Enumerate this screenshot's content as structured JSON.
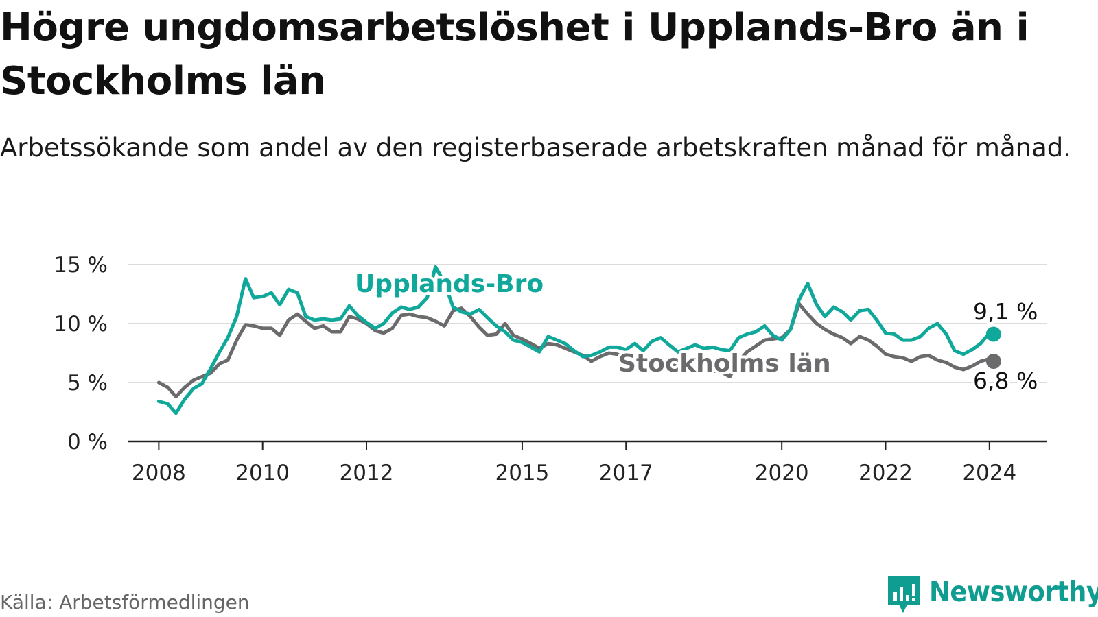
{
  "header": {
    "title": "Högre ungdomsarbetslöshet i Upplands-Bro än i Stockholms län",
    "subtitle": "Arbetssökande som andel av den registerbaserade arbetskraften månad för månad."
  },
  "footer": {
    "source": "Källa: Arbetsförmedlingen",
    "brand": "Newsworthy"
  },
  "colors": {
    "upplands": "#0fa89a",
    "stockholm": "#6b6b6e",
    "grid": "#dcdcdc",
    "axis": "#222222",
    "text": "#111111"
  },
  "chart_data": {
    "type": "line",
    "title": "Högre ungdomsarbetslöshet i Upplands-Bro än i Stockholms län",
    "xlabel": "",
    "ylabel": "",
    "ylim": [
      0,
      15
    ],
    "xlim": [
      2007.4,
      2025.1
    ],
    "yticks": [
      0,
      5,
      10,
      15
    ],
    "ytick_labels": [
      "0 %",
      "5 %",
      "10 %",
      "15 %"
    ],
    "xticks": [
      2008,
      2010,
      2012,
      2015,
      2017,
      2020,
      2022,
      2024
    ],
    "xtick_labels": [
      "2008",
      "2010",
      "2012",
      "2015",
      "2017",
      "2020",
      "2022",
      "2024"
    ],
    "grid": true,
    "series": [
      {
        "name": "Upplands-Bro",
        "label": "Upplands-Bro",
        "end_label": "9,1 %",
        "x": [
          2008.0,
          2008.17,
          2008.33,
          2008.5,
          2008.67,
          2008.83,
          2009.0,
          2009.17,
          2009.33,
          2009.5,
          2009.67,
          2009.83,
          2010.0,
          2010.17,
          2010.33,
          2010.5,
          2010.67,
          2010.83,
          2011.0,
          2011.17,
          2011.33,
          2011.5,
          2011.67,
          2011.83,
          2012.0,
          2012.17,
          2012.33,
          2012.5,
          2012.67,
          2012.83,
          2013.0,
          2013.17,
          2013.33,
          2013.5,
          2013.67,
          2013.83,
          2014.0,
          2014.17,
          2014.33,
          2014.5,
          2014.67,
          2014.83,
          2015.0,
          2015.17,
          2015.33,
          2015.5,
          2015.67,
          2015.83,
          2016.0,
          2016.17,
          2016.33,
          2016.5,
          2016.67,
          2016.83,
          2017.0,
          2017.17,
          2017.33,
          2017.5,
          2017.67,
          2017.83,
          2018.0,
          2018.17,
          2018.33,
          2018.5,
          2018.67,
          2018.83,
          2019.0,
          2019.17,
          2019.33,
          2019.5,
          2019.67,
          2019.83,
          2020.0,
          2020.17,
          2020.33,
          2020.5,
          2020.67,
          2020.83,
          2021.0,
          2021.17,
          2021.33,
          2021.5,
          2021.67,
          2021.83,
          2022.0,
          2022.17,
          2022.33,
          2022.5,
          2022.67,
          2022.83,
          2023.0,
          2023.17,
          2023.33,
          2023.5,
          2023.67,
          2023.83,
          2024.0,
          2024.08
        ],
        "values": [
          3.4,
          3.2,
          2.4,
          3.6,
          4.5,
          4.9,
          6.2,
          7.6,
          8.8,
          10.6,
          13.8,
          12.2,
          12.3,
          12.6,
          11.6,
          12.9,
          12.6,
          10.6,
          10.3,
          10.4,
          10.3,
          10.4,
          11.5,
          10.7,
          10.1,
          9.6,
          10.0,
          10.9,
          11.4,
          11.2,
          11.4,
          12.2,
          14.8,
          13.5,
          11.4,
          11.0,
          10.8,
          11.2,
          10.5,
          9.8,
          9.3,
          8.6,
          8.4,
          8.0,
          7.6,
          8.9,
          8.6,
          8.3,
          7.7,
          7.2,
          7.3,
          7.6,
          8.0,
          8.0,
          7.8,
          8.3,
          7.7,
          8.5,
          8.8,
          8.2,
          7.6,
          7.9,
          8.2,
          7.9,
          8.0,
          7.8,
          7.7,
          8.8,
          9.1,
          9.3,
          9.8,
          9.0,
          8.6,
          9.5,
          12.0,
          13.4,
          11.6,
          10.6,
          11.4,
          11.0,
          10.3,
          11.1,
          11.2,
          10.3,
          9.2,
          9.1,
          8.6,
          8.6,
          8.9,
          9.6,
          10.0,
          9.1,
          7.7,
          7.4,
          7.8,
          8.3,
          9.2,
          9.1
        ]
      },
      {
        "name": "Stockholms län",
        "label": "Stockholms län",
        "end_label": "6,8 %",
        "x": [
          2008.0,
          2008.17,
          2008.33,
          2008.5,
          2008.67,
          2008.83,
          2009.0,
          2009.17,
          2009.33,
          2009.5,
          2009.67,
          2009.83,
          2010.0,
          2010.17,
          2010.33,
          2010.5,
          2010.67,
          2010.83,
          2011.0,
          2011.17,
          2011.33,
          2011.5,
          2011.67,
          2011.83,
          2012.0,
          2012.17,
          2012.33,
          2012.5,
          2012.67,
          2012.83,
          2013.0,
          2013.17,
          2013.33,
          2013.5,
          2013.67,
          2013.83,
          2014.0,
          2014.17,
          2014.33,
          2014.5,
          2014.67,
          2014.83,
          2015.0,
          2015.17,
          2015.33,
          2015.5,
          2015.67,
          2015.83,
          2016.0,
          2016.17,
          2016.33,
          2016.5,
          2016.67,
          2016.83,
          2017.0,
          2017.17,
          2017.33,
          2017.5,
          2017.67,
          2017.83,
          2018.0,
          2018.17,
          2018.33,
          2018.5,
          2018.67,
          2018.83,
          2019.0,
          2019.17,
          2019.33,
          2019.5,
          2019.67,
          2019.83,
          2020.0,
          2020.17,
          2020.33,
          2020.5,
          2020.67,
          2020.83,
          2021.0,
          2021.17,
          2021.33,
          2021.5,
          2021.67,
          2021.83,
          2022.0,
          2022.17,
          2022.33,
          2022.5,
          2022.67,
          2022.83,
          2023.0,
          2023.17,
          2023.33,
          2023.5,
          2023.67,
          2023.83,
          2024.0,
          2024.08
        ],
        "values": [
          5.0,
          4.6,
          3.8,
          4.6,
          5.2,
          5.5,
          5.8,
          6.6,
          6.9,
          8.6,
          9.9,
          9.8,
          9.6,
          9.6,
          9.0,
          10.3,
          10.8,
          10.2,
          9.6,
          9.8,
          9.3,
          9.3,
          10.6,
          10.4,
          10.0,
          9.4,
          9.2,
          9.6,
          10.7,
          10.8,
          10.6,
          10.5,
          10.2,
          9.8,
          11.1,
          11.3,
          10.6,
          9.7,
          9.0,
          9.1,
          10.0,
          9.0,
          8.7,
          8.3,
          7.9,
          8.3,
          8.2,
          7.9,
          7.6,
          7.3,
          6.8,
          7.2,
          7.5,
          7.4,
          7.1,
          6.9,
          6.8,
          6.9,
          6.7,
          6.6,
          6.4,
          6.3,
          6.0,
          6.2,
          6.0,
          5.9,
          5.5,
          6.8,
          7.6,
          8.1,
          8.6,
          8.7,
          8.8,
          9.5,
          11.7,
          10.8,
          10.0,
          9.5,
          9.1,
          8.8,
          8.3,
          8.9,
          8.6,
          8.1,
          7.4,
          7.2,
          7.1,
          6.8,
          7.2,
          7.3,
          6.9,
          6.7,
          6.3,
          6.1,
          6.4,
          6.8,
          7.0,
          6.8
        ]
      }
    ]
  }
}
